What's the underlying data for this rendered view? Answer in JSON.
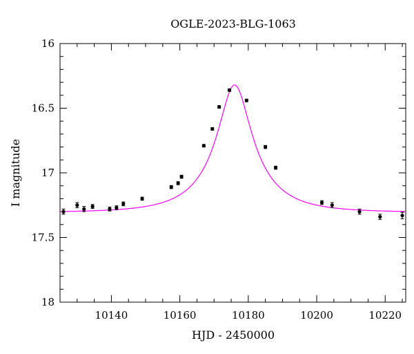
{
  "chart_data": {
    "type": "scatter",
    "title": "OGLE-2023-BLG-1063",
    "xlabel": "HJD - 2450000",
    "ylabel": "I magnitude",
    "xlim": [
      10125,
      10226
    ],
    "ylim": [
      18,
      16
    ],
    "y_inverted": true,
    "x_ticks": [
      10140,
      10160,
      10180,
      10200,
      10220
    ],
    "y_ticks": [
      16,
      16.5,
      17,
      17.5,
      18
    ],
    "x_tick_labels": [
      "10140",
      "10160",
      "10180",
      "10200",
      "10220"
    ],
    "y_tick_labels": [
      "16",
      "16.5",
      "17",
      "17.5",
      "18"
    ],
    "grid": false,
    "series": [
      {
        "kind": "points",
        "x": [
          10126,
          10130,
          10132,
          10134.5,
          10139.5,
          10141.5,
          10143.5,
          10149,
          10157.5,
          10159.5,
          10160.5,
          10167,
          10169.5,
          10171.5,
          10174.5,
          10179.5,
          10185,
          10188,
          10201.5,
          10204.5,
          10212.5,
          10218.5,
          10225
        ],
        "y": [
          17.3,
          17.25,
          17.28,
          17.26,
          17.28,
          17.27,
          17.24,
          17.2,
          17.11,
          17.08,
          17.03,
          16.79,
          16.66,
          16.49,
          16.36,
          16.44,
          16.8,
          16.96,
          17.23,
          17.25,
          17.3,
          17.34,
          17.33
        ],
        "yerr": [
          0.02,
          0.02,
          0.02,
          0.015,
          0.015,
          0.015,
          0.015,
          0.012,
          0.012,
          0.012,
          0.012,
          0.01,
          0.01,
          0.01,
          0.01,
          0.01,
          0.012,
          0.012,
          0.015,
          0.02,
          0.02,
          0.02,
          0.025
        ],
        "color": "#000000"
      },
      {
        "kind": "model-curve",
        "color": "#ff00ff",
        "peak_x": 10176,
        "peak_mag": 16.32,
        "baseline_mag": 17.305,
        "tE": 16,
        "u0": 0.32
      }
    ]
  }
}
